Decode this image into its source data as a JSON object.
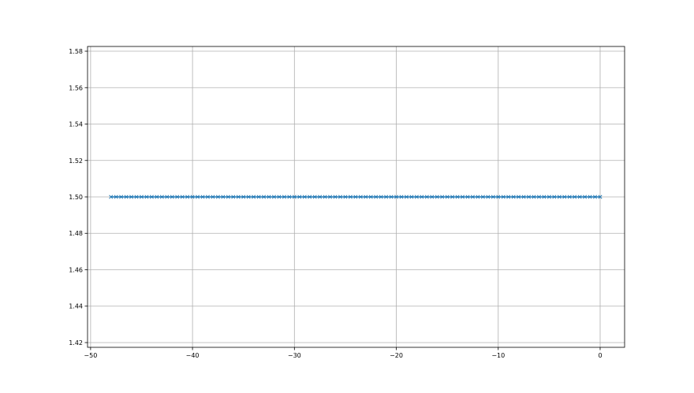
{
  "chart_data": {
    "type": "line",
    "title": "",
    "xlabel": "",
    "ylabel": "",
    "xlim": [
      -50.3,
      2.4
    ],
    "ylim": [
      1.4174,
      1.5826
    ],
    "grid": true,
    "marker": "x",
    "color": "#1f77b4",
    "xticks": [
      -50,
      -40,
      -30,
      -20,
      -10,
      0
    ],
    "xtick_labels": [
      "−50",
      "−40",
      "−30",
      "−20",
      "−10",
      "0"
    ],
    "yticks": [
      1.42,
      1.44,
      1.46,
      1.48,
      1.5,
      1.52,
      1.54,
      1.56,
      1.58
    ],
    "ytick_labels": [
      "1.42",
      "1.44",
      "1.46",
      "1.48",
      "1.50",
      "1.52",
      "1.54",
      "1.56",
      "1.58"
    ],
    "series": [
      {
        "x": [
          -48,
          -47.5,
          -47,
          -46.5,
          -46,
          -45.5,
          -45,
          -44.5,
          -44,
          -43.5,
          -43,
          -42.5,
          -42,
          -41.5,
          -41,
          -40.5,
          -40,
          -39.5,
          -39,
          -38.5,
          -38,
          -37.5,
          -37,
          -36.5,
          -36,
          -35.5,
          -35,
          -34.5,
          -34,
          -33.5,
          -33,
          -32.5,
          -32,
          -31.5,
          -31,
          -30.5,
          -30,
          -29.5,
          -29,
          -28.5,
          -28,
          -27.5,
          -27,
          -26.5,
          -26,
          -25.5,
          -25,
          -24.5,
          -24,
          -23.5,
          -23,
          -22.5,
          -22,
          -21.5,
          -21,
          -20.5,
          -20,
          -19.5,
          -19,
          -18.5,
          -18,
          -17.5,
          -17,
          -16.5,
          -16,
          -15.5,
          -15,
          -14.5,
          -14,
          -13.5,
          -13,
          -12.5,
          -12,
          -11.5,
          -11,
          -10.5,
          -10,
          -9.5,
          -9,
          -8.5,
          -8,
          -7.5,
          -7,
          -6.5,
          -6,
          -5.5,
          -5,
          -4.5,
          -4,
          -3.5,
          -3,
          -2.5,
          -2,
          -1.5,
          -1,
          -0.5,
          0
        ],
        "y_constant": 1.5
      }
    ]
  }
}
